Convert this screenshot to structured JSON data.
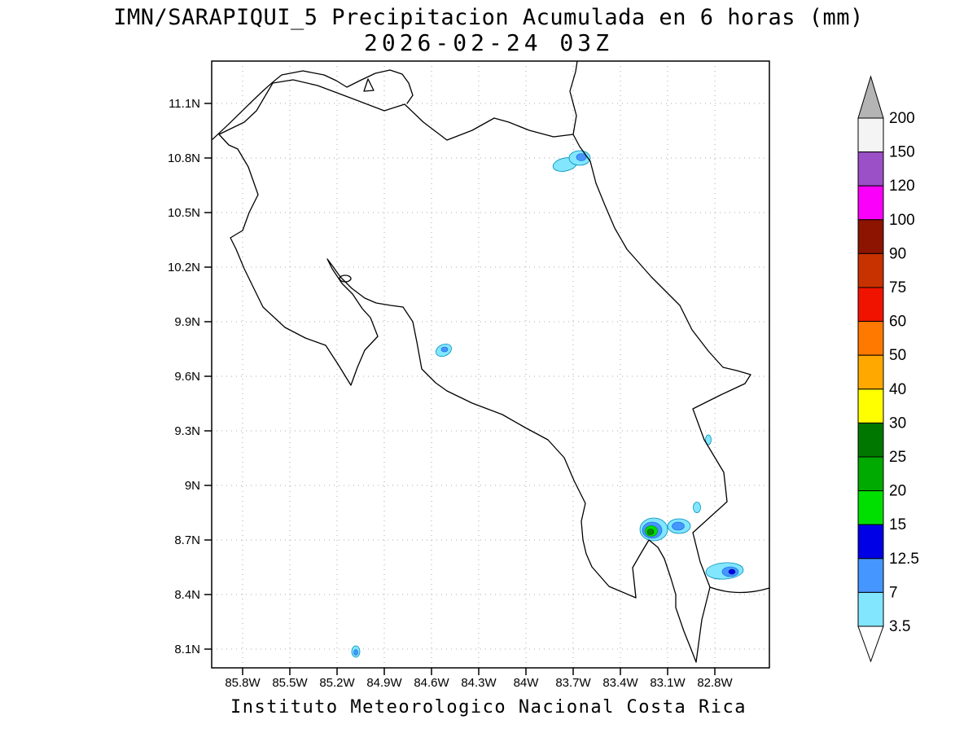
{
  "title": {
    "line1": "IMN/SARAPIQUI_5 Precipitacion Acumulada en 6 horas (mm)",
    "line2": "2026-02-24 03Z"
  },
  "footer": {
    "credit": "Instituto Meteorologico Nacional Costa Rica"
  },
  "map": {
    "lat_labels": [
      "11.1N",
      "10.8N",
      "10.5N",
      "10.2N",
      "9.9N",
      "9.6N",
      "9.3N",
      "9N",
      "8.7N",
      "8.4N",
      "8.1N"
    ],
    "lon_labels": [
      "85.8W",
      "85.5W",
      "85.2W",
      "84.9W",
      "84.6W",
      "84.3W",
      "84W",
      "83.7W",
      "83.4W",
      "83.1W",
      "82.8W"
    ]
  },
  "colorbar": {
    "unit": "mm",
    "levels_top_to_bottom": [
      "200",
      "150",
      "120",
      "100",
      "90",
      "75",
      "60",
      "50",
      "40",
      "30",
      "25",
      "20",
      "15",
      "12.5",
      "7",
      "3.5"
    ],
    "segment_colors_top_to_bottom": [
      "#f4f4f4",
      "#9b50c8",
      "#fa00fa",
      "#8c1400",
      "#c83200",
      "#f01400",
      "#ff7800",
      "#ffa800",
      "#ffff00",
      "#007800",
      "#00aa00",
      "#00e000",
      "#0000e6",
      "#4596ff",
      "#82e6ff"
    ],
    "arrow_top_color": "#b4b4b4",
    "arrow_bottom_color": "#ffffff",
    "palette": {
      "c1": "#82e6ff",
      "c2": "#4596ff",
      "c3": "#0000e6",
      "c4": "#00e000",
      "c5": "#008c00"
    }
  },
  "chart_data": {
    "type": "heatmap",
    "title": "IMN/SARAPIQUI_5 Precipitacion Acumulada en 6 horas (mm)",
    "valid_time": "2026-02-24 03Z",
    "units": "mm",
    "region": "Costa Rica",
    "lat_ticks": [
      "11.1N",
      "10.8N",
      "10.5N",
      "10.2N",
      "9.9N",
      "9.6N",
      "9.3N",
      "9N",
      "8.7N",
      "8.4N",
      "8.1N"
    ],
    "lon_ticks": [
      "85.8W",
      "85.5W",
      "85.2W",
      "84.9W",
      "84.6W",
      "84.3W",
      "84W",
      "83.7W",
      "83.4W",
      "83.1W",
      "82.8W"
    ],
    "contour_levels_mm": [
      3.5,
      7,
      12.5,
      15,
      20,
      25,
      30,
      40,
      50,
      60,
      75,
      90,
      100,
      120,
      150,
      200
    ],
    "precip_cells": [
      {
        "near": "10.8N 83.6W Caribbean coast north",
        "peak_mm_range": "7-12.5"
      },
      {
        "near": "9.75N 84.55W central Pacific coast",
        "peak_mm_range": "7-12.5"
      },
      {
        "near": "9.25N 83.15W",
        "peak_mm_range": "3.5-7"
      },
      {
        "near": "8.75N 83.45W Golfo Dulce area",
        "peak_mm_range": "20-30"
      },
      {
        "near": "8.75N 83.2W",
        "peak_mm_range": "7-12.5"
      },
      {
        "near": "8.5N 83.0W near Panama border",
        "peak_mm_range": "12.5-15"
      },
      {
        "near": "8.1N 85.15W offshore",
        "peak_mm_range": "7-12.5"
      }
    ]
  }
}
